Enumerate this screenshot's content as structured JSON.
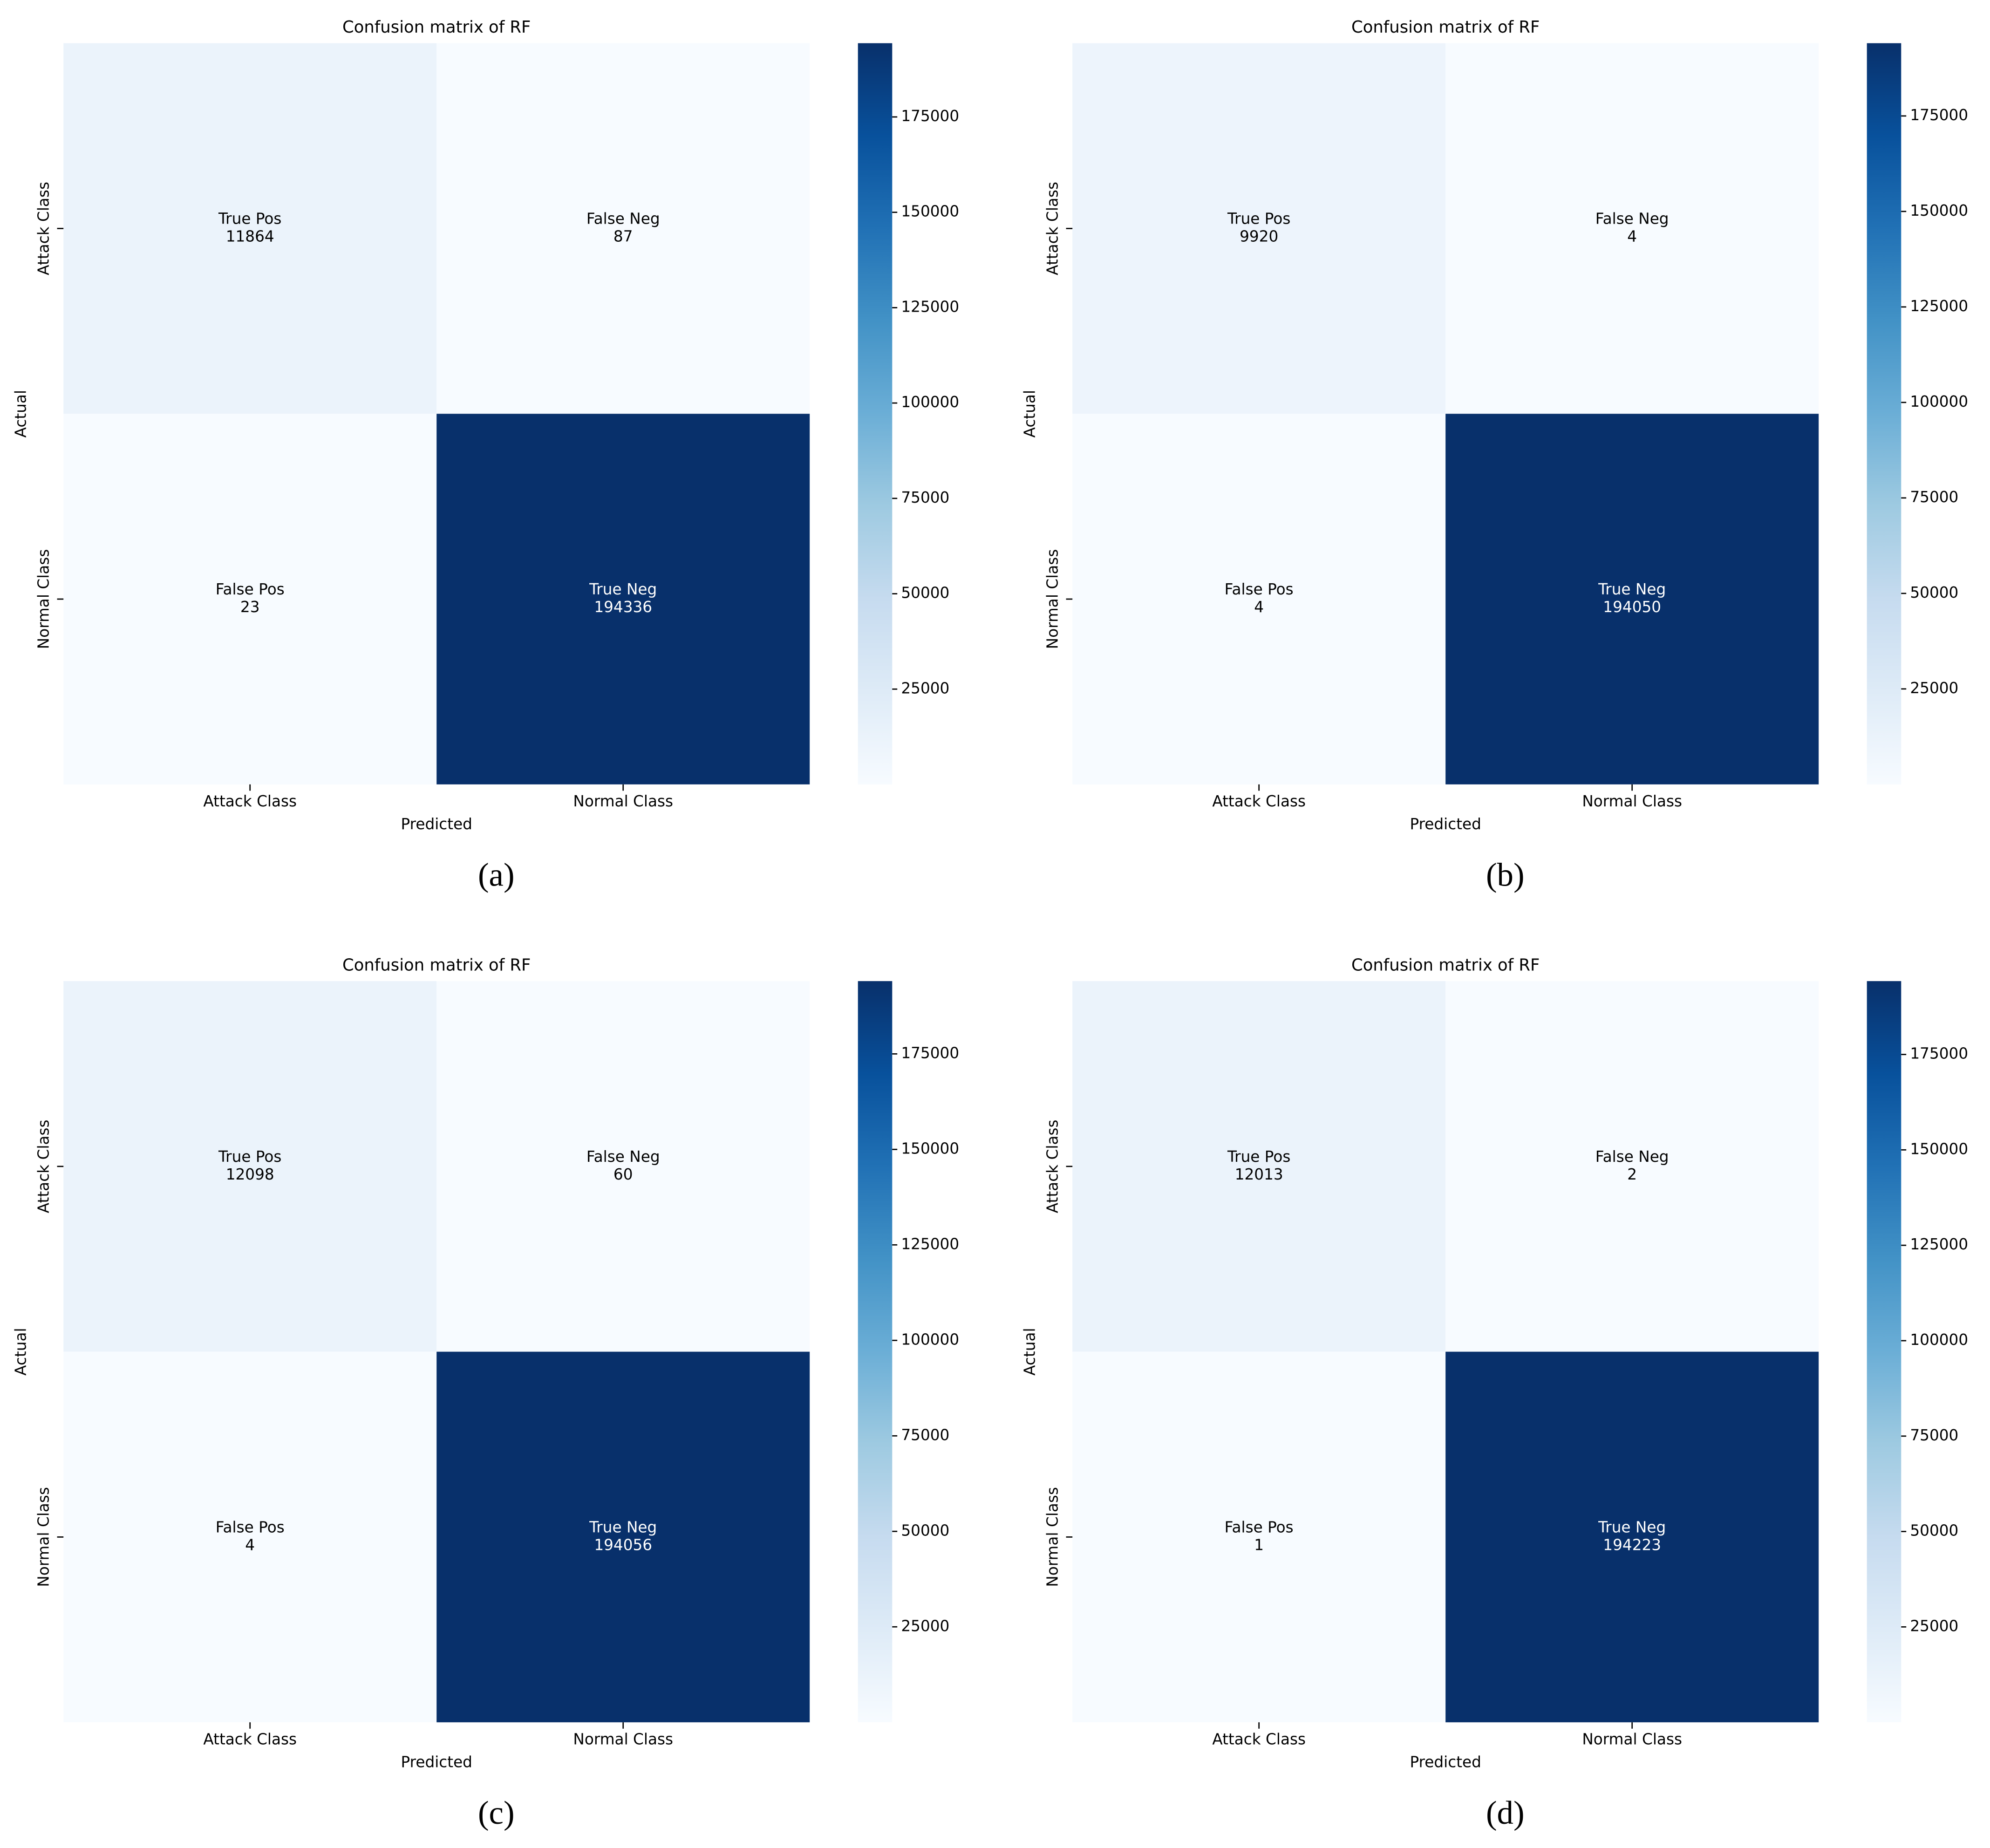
{
  "chart_data": [
    {
      "type": "heatmap",
      "title": "Confusion matrix of RF",
      "xlabel": "Predicted",
      "ylabel": "Actual",
      "caption": "(a)",
      "x_categories": [
        "Attack Class",
        "Normal Class"
      ],
      "y_categories": [
        "Attack Class",
        "Normal Class"
      ],
      "cell_names": [
        [
          "True Pos",
          "False Neg"
        ],
        [
          "False Pos",
          "True Neg"
        ]
      ],
      "values": [
        [
          11864,
          87
        ],
        [
          23,
          194336
        ]
      ],
      "clim": [
        23,
        194336
      ],
      "cticks": [
        25000,
        50000,
        75000,
        100000,
        125000,
        150000,
        175000
      ],
      "colormap": [
        "#f7fbff",
        "#deebf7",
        "#c6dbef",
        "#9ecae1",
        "#6baed6",
        "#4292c6",
        "#2171b5",
        "#08519c",
        "#08306b"
      ]
    },
    {
      "type": "heatmap",
      "title": "Confusion matrix of RF",
      "xlabel": "Predicted",
      "ylabel": "Actual",
      "caption": "(b)",
      "x_categories": [
        "Attack Class",
        "Normal Class"
      ],
      "y_categories": [
        "Attack Class",
        "Normal Class"
      ],
      "cell_names": [
        [
          "True Pos",
          "False Neg"
        ],
        [
          "False Pos",
          "True Neg"
        ]
      ],
      "values": [
        [
          9920,
          4
        ],
        [
          4,
          194050
        ]
      ],
      "clim": [
        4,
        194050
      ],
      "cticks": [
        25000,
        50000,
        75000,
        100000,
        125000,
        150000,
        175000
      ],
      "colormap": [
        "#f7fbff",
        "#deebf7",
        "#c6dbef",
        "#9ecae1",
        "#6baed6",
        "#4292c6",
        "#2171b5",
        "#08519c",
        "#08306b"
      ]
    },
    {
      "type": "heatmap",
      "title": "Confusion matrix of RF",
      "xlabel": "Predicted",
      "ylabel": "Actual",
      "caption": "(c)",
      "x_categories": [
        "Attack Class",
        "Normal Class"
      ],
      "y_categories": [
        "Attack Class",
        "Normal Class"
      ],
      "cell_names": [
        [
          "True Pos",
          "False Neg"
        ],
        [
          "False Pos",
          "True Neg"
        ]
      ],
      "values": [
        [
          12098,
          60
        ],
        [
          4,
          194056
        ]
      ],
      "clim": [
        4,
        194056
      ],
      "cticks": [
        25000,
        50000,
        75000,
        100000,
        125000,
        150000,
        175000
      ],
      "colormap": [
        "#f7fbff",
        "#deebf7",
        "#c6dbef",
        "#9ecae1",
        "#6baed6",
        "#4292c6",
        "#2171b5",
        "#08519c",
        "#08306b"
      ]
    },
    {
      "type": "heatmap",
      "title": "Confusion matrix of RF",
      "xlabel": "Predicted",
      "ylabel": "Actual",
      "caption": "(d)",
      "x_categories": [
        "Attack Class",
        "Normal Class"
      ],
      "y_categories": [
        "Attack Class",
        "Normal Class"
      ],
      "cell_names": [
        [
          "True Pos",
          "False Neg"
        ],
        [
          "False Pos",
          "True Neg"
        ]
      ],
      "values": [
        [
          12013,
          2
        ],
        [
          1,
          194223
        ]
      ],
      "clim": [
        1,
        194223
      ],
      "cticks": [
        25000,
        50000,
        75000,
        100000,
        125000,
        150000,
        175000
      ],
      "colormap": [
        "#f7fbff",
        "#deebf7",
        "#c6dbef",
        "#9ecae1",
        "#6baed6",
        "#4292c6",
        "#2171b5",
        "#08519c",
        "#08306b"
      ]
    }
  ]
}
